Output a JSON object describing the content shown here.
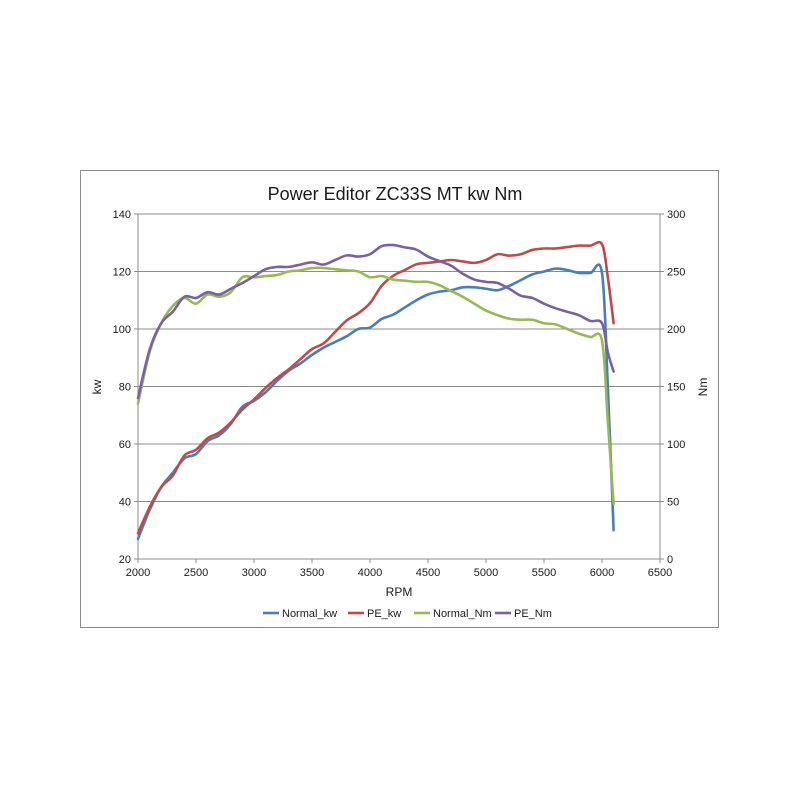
{
  "chart_data": {
    "type": "line",
    "title": "Power Editor ZC33S MT  kw Nm",
    "xlabel": "RPM",
    "ylabel": "kw",
    "y2label": "Nm",
    "xlim": [
      2000,
      6500
    ],
    "ylim": [
      20,
      140
    ],
    "y2lim": [
      0,
      300
    ],
    "xticks": [
      "2000",
      "2500",
      "3000",
      "3500",
      "4000",
      "4500",
      "5000",
      "5500",
      "6000",
      "6500"
    ],
    "yticks": [
      "20",
      "40",
      "60",
      "80",
      "100",
      "120",
      "140"
    ],
    "y2ticks": [
      "0",
      "50",
      "100",
      "150",
      "200",
      "250",
      "300"
    ],
    "grid": "horizontal",
    "legend": "bottom",
    "series": [
      {
        "name": "Normal_kw",
        "axis": "left",
        "color": "#4a7ebb",
        "x": [
          2000,
          2100,
          2200,
          2300,
          2400,
          2500,
          2600,
          2700,
          2800,
          2900,
          3000,
          3100,
          3200,
          3300,
          3400,
          3500,
          3600,
          3700,
          3800,
          3900,
          4000,
          4100,
          4200,
          4300,
          4400,
          4500,
          4600,
          4700,
          4800,
          4900,
          5000,
          5100,
          5200,
          5300,
          5400,
          5500,
          5600,
          5700,
          5800,
          5900,
          6000,
          6050,
          6100
        ],
        "y": [
          27,
          37,
          45,
          50,
          55,
          56.5,
          61,
          63,
          67,
          73,
          75,
          78,
          82,
          85.5,
          88,
          91,
          93.5,
          95.5,
          97.5,
          100,
          100.5,
          103.5,
          105,
          107.5,
          110,
          112,
          113,
          113.5,
          114.5,
          114.5,
          114,
          113.5,
          115,
          117,
          119,
          120,
          121,
          120.5,
          119.5,
          119.5,
          119.5,
          80,
          30
        ]
      },
      {
        "name": "PE_kw",
        "axis": "left",
        "color": "#be4b48",
        "x": [
          2000,
          2100,
          2200,
          2300,
          2400,
          2500,
          2600,
          2700,
          2800,
          2900,
          3000,
          3100,
          3200,
          3300,
          3400,
          3500,
          3600,
          3700,
          3800,
          3900,
          4000,
          4100,
          4200,
          4300,
          4400,
          4500,
          4600,
          4700,
          4800,
          4900,
          5000,
          5100,
          5200,
          5300,
          5400,
          5500,
          5600,
          5700,
          5800,
          5900,
          6000,
          6050,
          6100
        ],
        "y": [
          29,
          38,
          45,
          49,
          56,
          58,
          62,
          64,
          67.5,
          72,
          75.5,
          79.5,
          83,
          86,
          89.5,
          93,
          95,
          99,
          103,
          105.5,
          109,
          115,
          118.5,
          120.5,
          122.5,
          123,
          123.5,
          124,
          123.5,
          123,
          124,
          126,
          125.5,
          126,
          127.5,
          128,
          128,
          128.5,
          129,
          129,
          129.5,
          118,
          102
        ]
      },
      {
        "name": "Normal_Nm",
        "axis": "right",
        "color": "#98b954",
        "x": [
          2000,
          2100,
          2200,
          2300,
          2400,
          2500,
          2600,
          2700,
          2800,
          2900,
          3000,
          3100,
          3200,
          3300,
          3400,
          3500,
          3600,
          3700,
          3800,
          3900,
          4000,
          4100,
          4200,
          4300,
          4400,
          4500,
          4600,
          4700,
          4800,
          4900,
          5000,
          5100,
          5200,
          5300,
          5400,
          5500,
          5600,
          5700,
          5800,
          5900,
          6000,
          6050,
          6100
        ],
        "y": [
          135,
          180,
          205,
          220,
          227,
          222,
          230,
          228,
          232,
          245,
          245,
          246,
          247,
          250,
          251,
          253,
          253,
          252,
          251,
          250,
          245,
          246,
          243,
          242,
          241,
          241,
          238,
          233,
          228,
          222,
          216,
          212,
          209,
          208,
          208,
          205,
          204,
          200,
          196,
          193,
          190,
          120,
          48
        ]
      },
      {
        "name": "PE_Nm",
        "axis": "right",
        "color": "#7d60a0",
        "x": [
          2000,
          2100,
          2200,
          2300,
          2400,
          2500,
          2600,
          2700,
          2800,
          2900,
          3000,
          3100,
          3200,
          3300,
          3400,
          3500,
          3600,
          3700,
          3800,
          3900,
          4000,
          4100,
          4200,
          4300,
          4400,
          4500,
          4600,
          4700,
          4800,
          4900,
          5000,
          5100,
          5200,
          5300,
          5400,
          5500,
          5600,
          5700,
          5800,
          5900,
          6000,
          6050,
          6100
        ],
        "y": [
          140,
          182,
          205,
          215,
          228,
          227,
          232,
          230,
          235,
          240,
          246,
          252,
          254,
          254,
          256,
          258,
          256,
          260,
          264,
          263,
          265,
          272,
          273,
          271,
          269,
          263,
          259,
          255,
          248,
          243,
          241,
          240,
          235,
          229,
          227,
          222,
          218,
          215,
          212,
          207,
          205,
          180,
          163
        ]
      }
    ]
  }
}
